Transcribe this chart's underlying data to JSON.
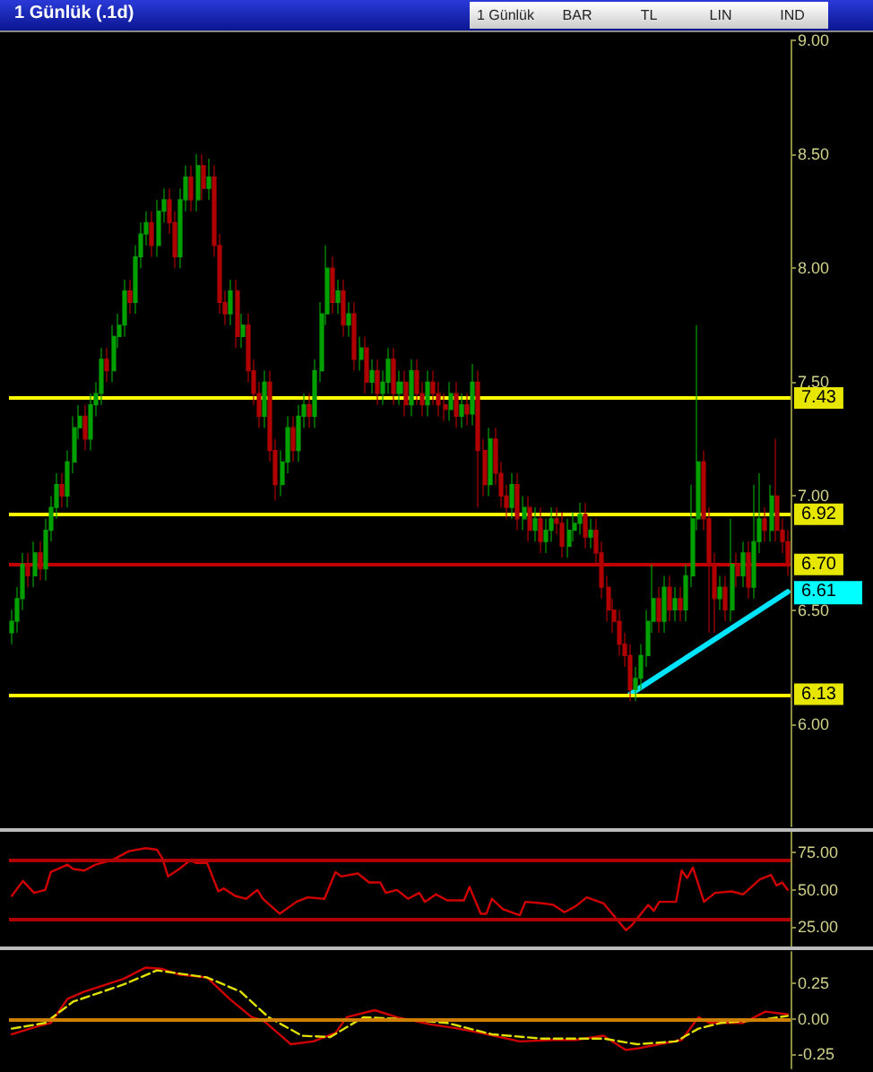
{
  "chart_data": [
    {
      "type": "candlestick",
      "title": "1 Günlük (.1d)",
      "annotations": [
        "1 Günlük",
        "BAR",
        "TL",
        "LIN",
        "IND",
        "6.61"
      ],
      "ylim": [
        5.55,
        9.0
      ],
      "yticks": [
        {
          "value": 6,
          "label": "6.00"
        },
        {
          "value": 6.5,
          "label": "6.50"
        },
        {
          "value": 7,
          "label": "7.00"
        },
        {
          "value": 7.5,
          "label": "7.50"
        },
        {
          "value": 8,
          "label": "8.00"
        },
        {
          "value": 8.5,
          "label": "8.50"
        },
        {
          "value": 9,
          "label": "9.00"
        }
      ],
      "tick_labels": "y",
      "categories": [
        null,
        null,
        null,
        null,
        null,
        null,
        null,
        null,
        null,
        null,
        null,
        null,
        null,
        null,
        null,
        null,
        null,
        null,
        null,
        null,
        null,
        null,
        null,
        null,
        null,
        null,
        null,
        null,
        null,
        null,
        null,
        null,
        null,
        null,
        null,
        null,
        null,
        null,
        null,
        null,
        null,
        null,
        null,
        null,
        null,
        null,
        null,
        null,
        null,
        null,
        null,
        null,
        null,
        null,
        null,
        null,
        null,
        null,
        null,
        null,
        null,
        null,
        null,
        null,
        null,
        null,
        null,
        null,
        null,
        null,
        null,
        null,
        null,
        null,
        null,
        null,
        null,
        null,
        null,
        null,
        null,
        null,
        null,
        null,
        null,
        null,
        null,
        null,
        null,
        null,
        null,
        null,
        null,
        null,
        null,
        null,
        null,
        null,
        null,
        null,
        null,
        null,
        null,
        null,
        null,
        null,
        null,
        null,
        null,
        null,
        null,
        null,
        null,
        null,
        null,
        null,
        null,
        null,
        null,
        null,
        null,
        null,
        null,
        null,
        null,
        null,
        null,
        null,
        null,
        null,
        null,
        null,
        null,
        null,
        null,
        null,
        null,
        null,
        null
      ],
      "ohlc": [
        [
          6.4,
          6.5,
          6.35,
          6.45
        ],
        [
          6.45,
          6.6,
          6.4,
          6.55
        ],
        [
          6.55,
          6.75,
          6.5,
          6.7
        ],
        [
          6.7,
          6.75,
          6.6,
          6.65
        ],
        [
          6.65,
          6.8,
          6.6,
          6.75
        ],
        [
          6.75,
          6.8,
          6.63,
          6.68
        ],
        [
          6.68,
          6.9,
          6.63,
          6.85
        ],
        [
          6.85,
          7.0,
          6.8,
          6.95
        ],
        [
          6.95,
          7.1,
          6.9,
          7.05
        ],
        [
          7.05,
          7.1,
          6.95,
          7.0
        ],
        [
          7.0,
          7.2,
          6.95,
          7.15
        ],
        [
          7.15,
          7.35,
          7.1,
          7.3
        ],
        [
          7.3,
          7.4,
          7.25,
          7.35
        ],
        [
          7.35,
          7.4,
          7.2,
          7.25
        ],
        [
          7.25,
          7.45,
          7.2,
          7.4
        ],
        [
          7.4,
          7.5,
          7.35,
          7.45
        ],
        [
          7.45,
          7.65,
          7.4,
          7.6
        ],
        [
          7.6,
          7.65,
          7.5,
          7.55
        ],
        [
          7.55,
          7.75,
          7.5,
          7.7
        ],
        [
          7.7,
          7.8,
          7.65,
          7.75
        ],
        [
          7.75,
          7.95,
          7.7,
          7.9
        ],
        [
          7.9,
          7.95,
          7.8,
          7.85
        ],
        [
          7.85,
          8.1,
          7.8,
          8.05
        ],
        [
          8.05,
          8.2,
          8.0,
          8.15
        ],
        [
          8.15,
          8.25,
          8.1,
          8.2
        ],
        [
          8.2,
          8.25,
          8.05,
          8.1
        ],
        [
          8.1,
          8.3,
          8.05,
          8.25
        ],
        [
          8.25,
          8.35,
          8.2,
          8.3
        ],
        [
          8.3,
          8.35,
          8.15,
          8.2
        ],
        [
          8.2,
          8.25,
          8.0,
          8.05
        ],
        [
          8.05,
          8.35,
          8.0,
          8.3
        ],
        [
          8.3,
          8.45,
          8.25,
          8.4
        ],
        [
          8.4,
          8.45,
          8.25,
          8.3
        ],
        [
          8.3,
          8.5,
          8.25,
          8.45
        ],
        [
          8.45,
          8.5,
          8.3,
          8.35
        ],
        [
          8.35,
          8.48,
          8.3,
          8.4
        ],
        [
          8.4,
          8.45,
          8.05,
          8.1
        ],
        [
          8.1,
          8.15,
          7.8,
          7.85
        ],
        [
          7.85,
          7.9,
          7.75,
          7.8
        ],
        [
          7.8,
          7.95,
          7.75,
          7.9
        ],
        [
          7.9,
          7.95,
          7.65,
          7.7
        ],
        [
          7.7,
          7.8,
          7.65,
          7.75
        ],
        [
          7.75,
          7.8,
          7.5,
          7.55
        ],
        [
          7.55,
          7.6,
          7.4,
          7.45
        ],
        [
          7.45,
          7.5,
          7.3,
          7.35
        ],
        [
          7.35,
          7.55,
          7.3,
          7.5
        ],
        [
          7.5,
          7.55,
          7.15,
          7.2
        ],
        [
          7.2,
          7.25,
          6.98,
          7.05
        ],
        [
          7.05,
          7.2,
          7.0,
          7.15
        ],
        [
          7.15,
          7.35,
          7.1,
          7.3
        ],
        [
          7.3,
          7.35,
          7.15,
          7.2
        ],
        [
          7.2,
          7.4,
          7.15,
          7.35
        ],
        [
          7.35,
          7.45,
          7.3,
          7.4
        ],
        [
          7.4,
          7.45,
          7.3,
          7.35
        ],
        [
          7.35,
          7.6,
          7.3,
          7.55
        ],
        [
          7.55,
          7.85,
          7.5,
          7.8
        ],
        [
          7.8,
          8.1,
          7.75,
          8.0
        ],
        [
          8.0,
          8.05,
          7.8,
          7.85
        ],
        [
          7.85,
          7.95,
          7.8,
          7.9
        ],
        [
          7.9,
          7.95,
          7.7,
          7.75
        ],
        [
          7.75,
          7.85,
          7.7,
          7.8
        ],
        [
          7.8,
          7.85,
          7.55,
          7.6
        ],
        [
          7.6,
          7.7,
          7.55,
          7.65
        ],
        [
          7.65,
          7.7,
          7.45,
          7.5
        ],
        [
          7.5,
          7.6,
          7.45,
          7.55
        ],
        [
          7.55,
          7.6,
          7.4,
          7.45
        ],
        [
          7.45,
          7.55,
          7.4,
          7.5
        ],
        [
          7.5,
          7.65,
          7.45,
          7.6
        ],
        [
          7.6,
          7.65,
          7.4,
          7.45
        ],
        [
          7.45,
          7.55,
          7.4,
          7.5
        ],
        [
          7.5,
          7.55,
          7.35,
          7.4
        ],
        [
          7.4,
          7.6,
          7.35,
          7.55
        ],
        [
          7.55,
          7.6,
          7.4,
          7.45
        ],
        [
          7.45,
          7.5,
          7.35,
          7.4
        ],
        [
          7.4,
          7.55,
          7.35,
          7.5
        ],
        [
          7.5,
          7.55,
          7.4,
          7.45
        ],
        [
          7.45,
          7.5,
          7.35,
          7.4
        ],
        [
          7.4,
          7.45,
          7.33,
          7.38
        ],
        [
          7.38,
          7.5,
          7.33,
          7.45
        ],
        [
          7.45,
          7.5,
          7.3,
          7.35
        ],
        [
          7.35,
          7.45,
          7.3,
          7.4
        ],
        [
          7.4,
          7.45,
          7.31,
          7.36
        ],
        [
          7.36,
          7.58,
          7.31,
          7.5
        ],
        [
          7.5,
          7.55,
          6.95,
          7.2
        ],
        [
          7.2,
          7.25,
          7.0,
          7.05
        ],
        [
          7.05,
          7.3,
          7.0,
          7.25
        ],
        [
          7.25,
          7.3,
          7.05,
          7.1
        ],
        [
          7.1,
          7.15,
          6.95,
          7.0
        ],
        [
          7.0,
          7.05,
          6.9,
          6.95
        ],
        [
          6.95,
          7.1,
          6.9,
          7.05
        ],
        [
          7.05,
          7.1,
          6.85,
          6.9
        ],
        [
          6.9,
          7.0,
          6.85,
          6.95
        ],
        [
          6.95,
          7.0,
          6.8,
          6.85
        ],
        [
          6.85,
          6.95,
          6.8,
          6.9
        ],
        [
          6.9,
          6.95,
          6.75,
          6.8
        ],
        [
          6.8,
          6.9,
          6.75,
          6.85
        ],
        [
          6.85,
          6.95,
          6.8,
          6.9
        ],
        [
          6.9,
          6.95,
          6.83,
          6.88
        ],
        [
          6.88,
          6.93,
          6.73,
          6.78
        ],
        [
          6.78,
          6.9,
          6.73,
          6.85
        ],
        [
          6.85,
          6.93,
          6.8,
          6.88
        ],
        [
          6.88,
          6.97,
          6.83,
          6.92
        ],
        [
          6.92,
          6.97,
          6.77,
          6.82
        ],
        [
          6.82,
          6.9,
          6.77,
          6.85
        ],
        [
          6.85,
          6.9,
          6.7,
          6.75
        ],
        [
          6.75,
          6.8,
          6.55,
          6.6
        ],
        [
          6.6,
          6.65,
          6.45,
          6.5
        ],
        [
          6.5,
          6.55,
          6.4,
          6.45
        ],
        [
          6.45,
          6.5,
          6.3,
          6.35
        ],
        [
          6.35,
          6.4,
          6.25,
          6.3
        ],
        [
          6.3,
          6.35,
          6.1,
          6.15
        ],
        [
          6.15,
          6.25,
          6.1,
          6.2
        ],
        [
          6.2,
          6.35,
          6.15,
          6.3
        ],
        [
          6.3,
          6.5,
          6.25,
          6.45
        ],
        [
          6.45,
          6.7,
          6.4,
          6.55
        ],
        [
          6.55,
          6.6,
          6.4,
          6.45
        ],
        [
          6.45,
          6.65,
          6.4,
          6.6
        ],
        [
          6.6,
          6.65,
          6.45,
          6.5
        ],
        [
          6.5,
          6.6,
          6.45,
          6.55
        ],
        [
          6.55,
          6.6,
          6.45,
          6.5
        ],
        [
          6.5,
          6.7,
          6.45,
          6.65
        ],
        [
          6.65,
          7.05,
          6.6,
          6.9
        ],
        [
          6.9,
          7.75,
          6.85,
          7.15
        ],
        [
          7.15,
          7.2,
          6.85,
          6.9
        ],
        [
          6.9,
          6.95,
          6.4,
          6.7
        ],
        [
          6.7,
          6.75,
          6.4,
          6.55
        ],
        [
          6.55,
          6.65,
          6.5,
          6.6
        ],
        [
          6.6,
          6.65,
          6.45,
          6.5
        ],
        [
          6.5,
          6.9,
          6.45,
          6.7
        ],
        [
          6.7,
          6.75,
          6.6,
          6.65
        ],
        [
          6.65,
          6.8,
          6.6,
          6.75
        ],
        [
          6.75,
          6.8,
          6.55,
          6.6
        ],
        [
          6.6,
          7.05,
          6.55,
          6.8
        ],
        [
          6.8,
          7.1,
          6.75,
          6.9
        ],
        [
          6.9,
          6.95,
          6.8,
          6.85
        ],
        [
          6.85,
          7.05,
          6.8,
          7.0
        ],
        [
          7.0,
          7.25,
          6.8,
          6.85
        ],
        [
          6.85,
          6.9,
          6.75,
          6.8
        ],
        [
          6.8,
          6.85,
          6.65,
          6.7
        ]
      ],
      "colors": [
        "#00a000",
        "#00a000",
        "#00a000",
        "#b00000",
        "#00a000",
        "#b00000",
        "#00a000",
        "#00a000",
        "#00a000",
        "#b00000",
        "#00a000",
        "#00a000",
        "#00a000",
        "#b00000",
        "#00a000",
        "#00a000",
        "#00a000",
        "#b00000",
        "#00a000",
        "#00a000",
        "#00a000",
        "#b00000",
        "#00a000",
        "#00a000",
        "#00a000",
        "#b00000",
        "#00a000",
        "#00a000",
        "#b00000",
        "#b00000",
        "#00a000",
        "#00a000",
        "#b00000",
        "#00a000",
        "#b00000",
        "#00a000",
        "#b00000",
        "#b00000",
        "#b00000",
        "#00a000",
        "#b00000",
        "#00a000",
        "#b00000",
        "#b00000",
        "#b00000",
        "#00a000",
        "#b00000",
        "#b00000",
        "#00a000",
        "#00a000",
        "#b00000",
        "#00a000",
        "#00a000",
        "#b00000",
        "#00a000",
        "#00a000",
        "#00a000",
        "#b00000",
        "#00a000",
        "#b00000",
        "#00a000",
        "#b00000",
        "#00a000",
        "#b00000",
        "#00a000",
        "#b00000",
        "#00a000",
        "#00a000",
        "#b00000",
        "#00a000",
        "#b00000",
        "#00a000",
        "#b00000",
        "#b00000",
        "#00a000",
        "#b00000",
        "#b00000",
        "#b00000",
        "#00a000",
        "#b00000",
        "#00a000",
        "#b00000",
        "#00a000",
        "#b00000",
        "#b00000",
        "#00a000",
        "#b00000",
        "#b00000",
        "#b00000",
        "#00a000",
        "#b00000",
        "#00a000",
        "#b00000",
        "#00a000",
        "#b00000",
        "#00a000",
        "#00a000",
        "#b00000",
        "#b00000",
        "#00a000",
        "#00a000",
        "#00a000",
        "#b00000",
        "#00a000",
        "#b00000",
        "#b00000",
        "#b00000",
        "#b00000",
        "#b00000",
        "#b00000",
        "#b00000",
        "#00a000",
        "#00a000",
        "#00a000",
        "#00a000",
        "#b00000",
        "#00a000",
        "#b00000",
        "#00a000",
        "#b00000",
        "#00a000",
        "#00a000",
        "#00a000",
        "#b00000",
        "#b00000",
        "#b00000",
        "#00a000",
        "#b00000",
        "#00a000",
        "#b00000",
        "#00a000",
        "#b00000",
        "#00a000",
        "#00a000",
        "#b00000",
        "#00a000",
        "#b00000",
        "#b00000",
        "#b00000"
      ],
      "series": [
        {
          "type": "line",
          "color": "#00e5ff",
          "values": [
            null,
            null,
            null,
            null,
            null,
            null,
            null,
            null,
            null,
            null,
            null,
            null,
            null,
            null,
            null,
            null,
            null,
            null,
            null,
            null,
            null,
            null,
            null,
            null,
            null,
            null,
            null,
            null,
            null,
            null,
            null,
            null,
            null,
            null,
            null,
            null,
            null,
            null,
            null,
            null,
            null,
            null,
            null,
            null,
            null,
            null,
            null,
            null,
            null,
            null,
            null,
            null,
            null,
            null,
            null,
            null,
            null,
            null,
            null,
            null,
            null,
            null,
            null,
            null,
            null,
            null,
            null,
            null,
            null,
            null,
            null,
            null,
            null,
            null,
            null,
            null,
            null,
            null,
            null,
            null,
            null,
            null,
            null,
            null,
            null,
            null,
            null,
            null,
            null,
            null,
            null,
            null,
            null,
            null,
            null,
            null,
            null,
            null,
            null,
            null,
            null,
            null,
            null,
            null,
            null,
            null,
            null,
            null,
            null,
            null,
            6.13,
            null,
            null,
            null,
            null,
            null,
            null,
            null,
            null,
            null,
            null,
            null,
            null,
            null,
            null,
            null,
            null,
            null,
            null,
            null,
            null,
            null,
            null,
            null,
            null,
            null,
            null,
            null,
            6.58
          ]
        }
      ],
      "ref_lines": [
        {
          "axis": "y",
          "value": 7.43,
          "label": "7.43",
          "color": "#ffff00"
        },
        {
          "axis": "y",
          "value": 6.92,
          "label": "6.92",
          "color": "#ffff00"
        },
        {
          "axis": "y",
          "value": 6.13,
          "label": "6.13",
          "color": "#ffff00"
        },
        {
          "axis": "y",
          "value": 6.7,
          "label": "6.70",
          "color": "#c00000"
        }
      ]
    },
    {
      "type": "line",
      "ylim": [
        12,
        89
      ],
      "categories": [
        null,
        null,
        null,
        null,
        null,
        null,
        null,
        null,
        null,
        null,
        null,
        null,
        null,
        null,
        null,
        null,
        null,
        null,
        null,
        null,
        null,
        null,
        null,
        null,
        null,
        null,
        null,
        null,
        null,
        null,
        null,
        null,
        null,
        null,
        null,
        null,
        null,
        null,
        null,
        null,
        null,
        null,
        null,
        null,
        null,
        null,
        null,
        null,
        null,
        null,
        null,
        null,
        null,
        null,
        null,
        null,
        null,
        null,
        null,
        null,
        null,
        null,
        null,
        null,
        null,
        null,
        null,
        null,
        null,
        null,
        null,
        null,
        null,
        null,
        null,
        null,
        null,
        null,
        null,
        null,
        null,
        null,
        null,
        null,
        null,
        null,
        null,
        null,
        null,
        null,
        null,
        null,
        null,
        null,
        null,
        null,
        null,
        null,
        null,
        null,
        null,
        null,
        null,
        null,
        null,
        null,
        null,
        null,
        null,
        null,
        null,
        null,
        null,
        null,
        null,
        null,
        null,
        null,
        null,
        null,
        null,
        null,
        null,
        null,
        null,
        null,
        null,
        null,
        null,
        null,
        null,
        null,
        null,
        null,
        null,
        null,
        null,
        null,
        null,
        null
      ],
      "yticks": [
        {
          "value": 25,
          "label": "25.00"
        },
        {
          "value": 50,
          "label": "50.00"
        },
        {
          "value": 75,
          "label": "75.00"
        }
      ],
      "tick_labels": "y",
      "series": [
        {
          "color": "#d00000",
          "values": [
            46,
            null,
            56,
            null,
            48,
            null,
            50,
            62,
            null,
            null,
            67,
            64,
            null,
            63,
            null,
            67,
            null,
            null,
            70,
            null,
            null,
            76,
            null,
            null,
            78,
            null,
            77,
            71,
            59,
            null,
            64,
            null,
            70,
            68,
            null,
            68,
            null,
            49,
            51,
            null,
            46,
            null,
            44,
            null,
            50,
            44,
            null,
            null,
            34,
            null,
            null,
            42,
            null,
            45,
            null,
            null,
            44,
            null,
            62,
            59,
            null,
            null,
            61,
            null,
            55,
            null,
            55,
            48,
            null,
            50,
            null,
            44,
            null,
            48,
            42,
            null,
            47,
            null,
            43,
            null,
            null,
            43,
            52,
            null,
            34,
            34,
            44,
            null,
            37,
            null,
            null,
            33,
            42,
            null,
            null,
            41,
            null,
            40,
            null,
            35,
            null,
            39,
            null,
            45,
            null,
            null,
            41,
            null,
            32,
            null,
            23,
            26,
            null,
            null,
            40,
            36,
            42,
            null,
            null,
            42,
            63,
            58,
            65,
            null,
            42,
            null,
            48,
            null,
            null,
            49,
            null,
            47,
            null,
            null,
            57,
            null,
            60,
            53,
            55,
            50
          ]
        }
      ],
      "ref_lines": [
        {
          "axis": "y",
          "value": 70,
          "color": "#b00000"
        },
        {
          "axis": "y",
          "value": 30,
          "color": "#b00000"
        }
      ]
    },
    {
      "type": "line",
      "ylim": [
        -0.35,
        0.47
      ],
      "categories": [
        null,
        null,
        null,
        null,
        null,
        null,
        null,
        null,
        null,
        null,
        null,
        null,
        null,
        null,
        null,
        null,
        null,
        null,
        null,
        null,
        null,
        null,
        null,
        null,
        null,
        null,
        null,
        null,
        null,
        null,
        null,
        null,
        null,
        null,
        null,
        null,
        null,
        null,
        null,
        null,
        null,
        null,
        null,
        null,
        null,
        null,
        null,
        null,
        null,
        null,
        null,
        null,
        null,
        null,
        null,
        null,
        null,
        null,
        null,
        null,
        null,
        null,
        null,
        null,
        null,
        null,
        null,
        null,
        null,
        null,
        null,
        null,
        null,
        null,
        null,
        null,
        null,
        null,
        null,
        null,
        null,
        null,
        null,
        null,
        null,
        null,
        null,
        null,
        null,
        null,
        null,
        null,
        null,
        null,
        null,
        null,
        null,
        null,
        null,
        null,
        null,
        null,
        null,
        null,
        null,
        null,
        null,
        null,
        null,
        null,
        null,
        null,
        null,
        null,
        null,
        null,
        null,
        null,
        null,
        null,
        null,
        null,
        null,
        null,
        null,
        null,
        null,
        null,
        null,
        null,
        null,
        null,
        null,
        null,
        null,
        null,
        null,
        null,
        null,
        null
      ],
      "yticks": [
        {
          "value": -0.25,
          "label": "-0.25"
        },
        {
          "value": 0,
          "label": "0.00"
        },
        {
          "value": 0.25,
          "label": "0.25"
        }
      ],
      "tick_labels": "y",
      "series": [
        {
          "color": "#d00000",
          "values": [
            -0.11,
            null,
            null,
            null,
            null,
            -0.05,
            null,
            -0.03,
            null,
            null,
            0.14,
            null,
            null,
            0.19,
            null,
            null,
            null,
            null,
            null,
            null,
            0.28,
            null,
            null,
            null,
            0.36,
            null,
            null,
            0.35,
            null,
            null,
            0.31,
            null,
            null,
            null,
            null,
            0.29,
            null,
            null,
            null,
            0.14,
            null,
            null,
            null,
            0.01,
            null,
            -0.01,
            null,
            null,
            null,
            null,
            -0.18,
            null,
            null,
            null,
            -0.16,
            null,
            null,
            null,
            -0.1,
            null,
            0.01,
            null,
            null,
            null,
            null,
            0.06,
            null,
            null,
            null,
            0.01,
            null,
            null,
            null,
            null,
            null,
            -0.04,
            null,
            null,
            null,
            null,
            -0.07,
            null,
            null,
            null,
            -0.1,
            null,
            null,
            null,
            null,
            null,
            null,
            -0.16,
            null,
            null,
            null,
            null,
            null,
            -0.15,
            null,
            null,
            null,
            -0.15,
            null,
            null,
            null,
            null,
            -0.12,
            null,
            null,
            null,
            -0.22,
            null,
            -0.21,
            null,
            null,
            null,
            -0.18,
            null,
            null,
            null,
            -0.15,
            null,
            null,
            0.01,
            null,
            -0.03,
            null,
            null,
            null,
            null,
            null,
            -0.03,
            null,
            null,
            null,
            0.05,
            null,
            null,
            null,
            0.03
          ]
        },
        {
          "color": "#e0e000",
          "line_style": "dashed",
          "values": [
            -0.07,
            null,
            null,
            null,
            null,
            null,
            -0.03,
            null,
            null,
            null,
            null,
            0.12,
            null,
            null,
            null,
            null,
            null,
            null,
            null,
            null,
            0.24,
            null,
            null,
            null,
            null,
            null,
            0.34,
            null,
            null,
            null,
            null,
            null,
            null,
            null,
            null,
            0.29,
            null,
            null,
            null,
            null,
            null,
            0.19,
            null,
            null,
            null,
            null,
            0.01,
            null,
            null,
            null,
            null,
            null,
            -0.12,
            null,
            null,
            null,
            null,
            -0.13,
            null,
            null,
            null,
            null,
            null,
            0.01,
            null,
            null,
            null,
            null,
            null,
            0,
            null,
            null,
            null,
            null,
            null,
            null,
            null,
            null,
            -0.03,
            null,
            null,
            null,
            null,
            null,
            null,
            null,
            -0.11,
            null,
            null,
            null,
            null,
            null,
            null,
            null,
            null,
            -0.14,
            null,
            null,
            null,
            null,
            null,
            null,
            null,
            null,
            null,
            null,
            -0.14,
            null,
            null,
            null,
            null,
            null,
            -0.18,
            null,
            null,
            null,
            null,
            null,
            null,
            -0.16,
            null,
            null,
            null,
            -0.07,
            null,
            null,
            null,
            -0.03,
            null,
            null,
            null,
            null,
            null,
            null,
            -0.01,
            null,
            null,
            null,
            null,
            0.02
          ]
        }
      ],
      "ref_lines": [
        {
          "axis": "y",
          "value": 0,
          "color": "#d08000"
        }
      ]
    }
  ]
}
